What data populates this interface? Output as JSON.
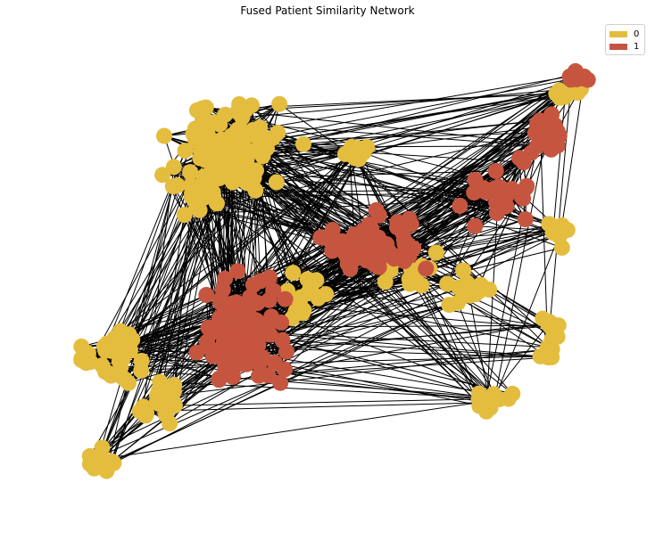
{
  "figure": {
    "title": "Fused Patient Similarity Network"
  },
  "legend": {
    "position": "top-right",
    "entries": [
      {
        "label": "0",
        "color": "#e4bd3f"
      },
      {
        "label": "1",
        "color": "#c65540"
      }
    ]
  },
  "style": {
    "edge_color": "#000000",
    "background": "#ffffff"
  }
}
